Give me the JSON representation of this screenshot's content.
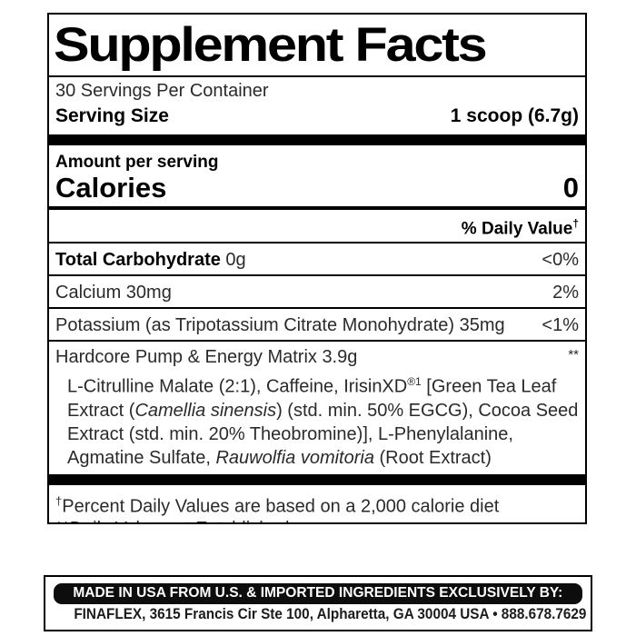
{
  "colors": {
    "ink": "#000000",
    "body_text": "#2a2a2a",
    "paper": "#ffffff",
    "banner_bg": "#0d0d0d",
    "banner_text": "#ffffff"
  },
  "label": {
    "title": "Supplement Facts",
    "servings_per_container": "30 Servings Per Container",
    "serving_size": {
      "label": "Serving Size",
      "value": "1 scoop (6.7g)"
    },
    "amount_per_serving": "Amount per serving",
    "calories": {
      "label": "Calories",
      "value": "0"
    },
    "daily_value_header": "% Daily Value",
    "daily_value_dagger": "†",
    "rows": [
      {
        "segments": [
          {
            "t": "Total Carbohydrate",
            "style": "bold"
          },
          {
            "t": " 0g"
          }
        ],
        "daily_value": "<0%"
      },
      {
        "segments": [
          {
            "t": "Calcium 30mg"
          }
        ],
        "daily_value": "2%"
      },
      {
        "segments": [
          {
            "t": "Potassium (as Tripotassium Citrate Monohydrate) 35mg"
          }
        ],
        "daily_value": "<1%"
      }
    ],
    "matrix": {
      "name": "Hardcore Pump & Energy Matrix 3.9g",
      "daily_value": "**",
      "ingredient_segments": [
        {
          "t": "L-Citrulline Malate (2:1), Caffeine, IrisinXD"
        },
        {
          "t": "®1",
          "style": "sup"
        },
        {
          "t": " [Green Tea Leaf Extract ("
        },
        {
          "t": "Camellia sinensis",
          "style": "italic"
        },
        {
          "t": ") (std. min. 50% EGCG), Cocoa Seed Extract (std. min. 20% Theobromine)], L-Phenylalanine, Agmatine Sulfate, "
        },
        {
          "t": "Rauwolfia vomitoria",
          "style": "italic"
        },
        {
          "t": " (Root Extract)"
        }
      ]
    },
    "footnotes": [
      {
        "segments": [
          {
            "t": "†",
            "style": "sup"
          },
          {
            "t": "Percent Daily Values are based on a 2,000 calorie diet"
          }
        ]
      },
      {
        "segments": [
          {
            "t": "**Daily Value not Established"
          }
        ]
      }
    ]
  },
  "footer": {
    "made_in_banner": "MADE IN USA FROM U.S. & IMPORTED INGREDIENTS EXCLUSIVELY BY:",
    "address": "FINAFLEX, 3615 Francis Cir Ste 100, Alpharetta, GA 30004 USA • 888.678.7629"
  }
}
